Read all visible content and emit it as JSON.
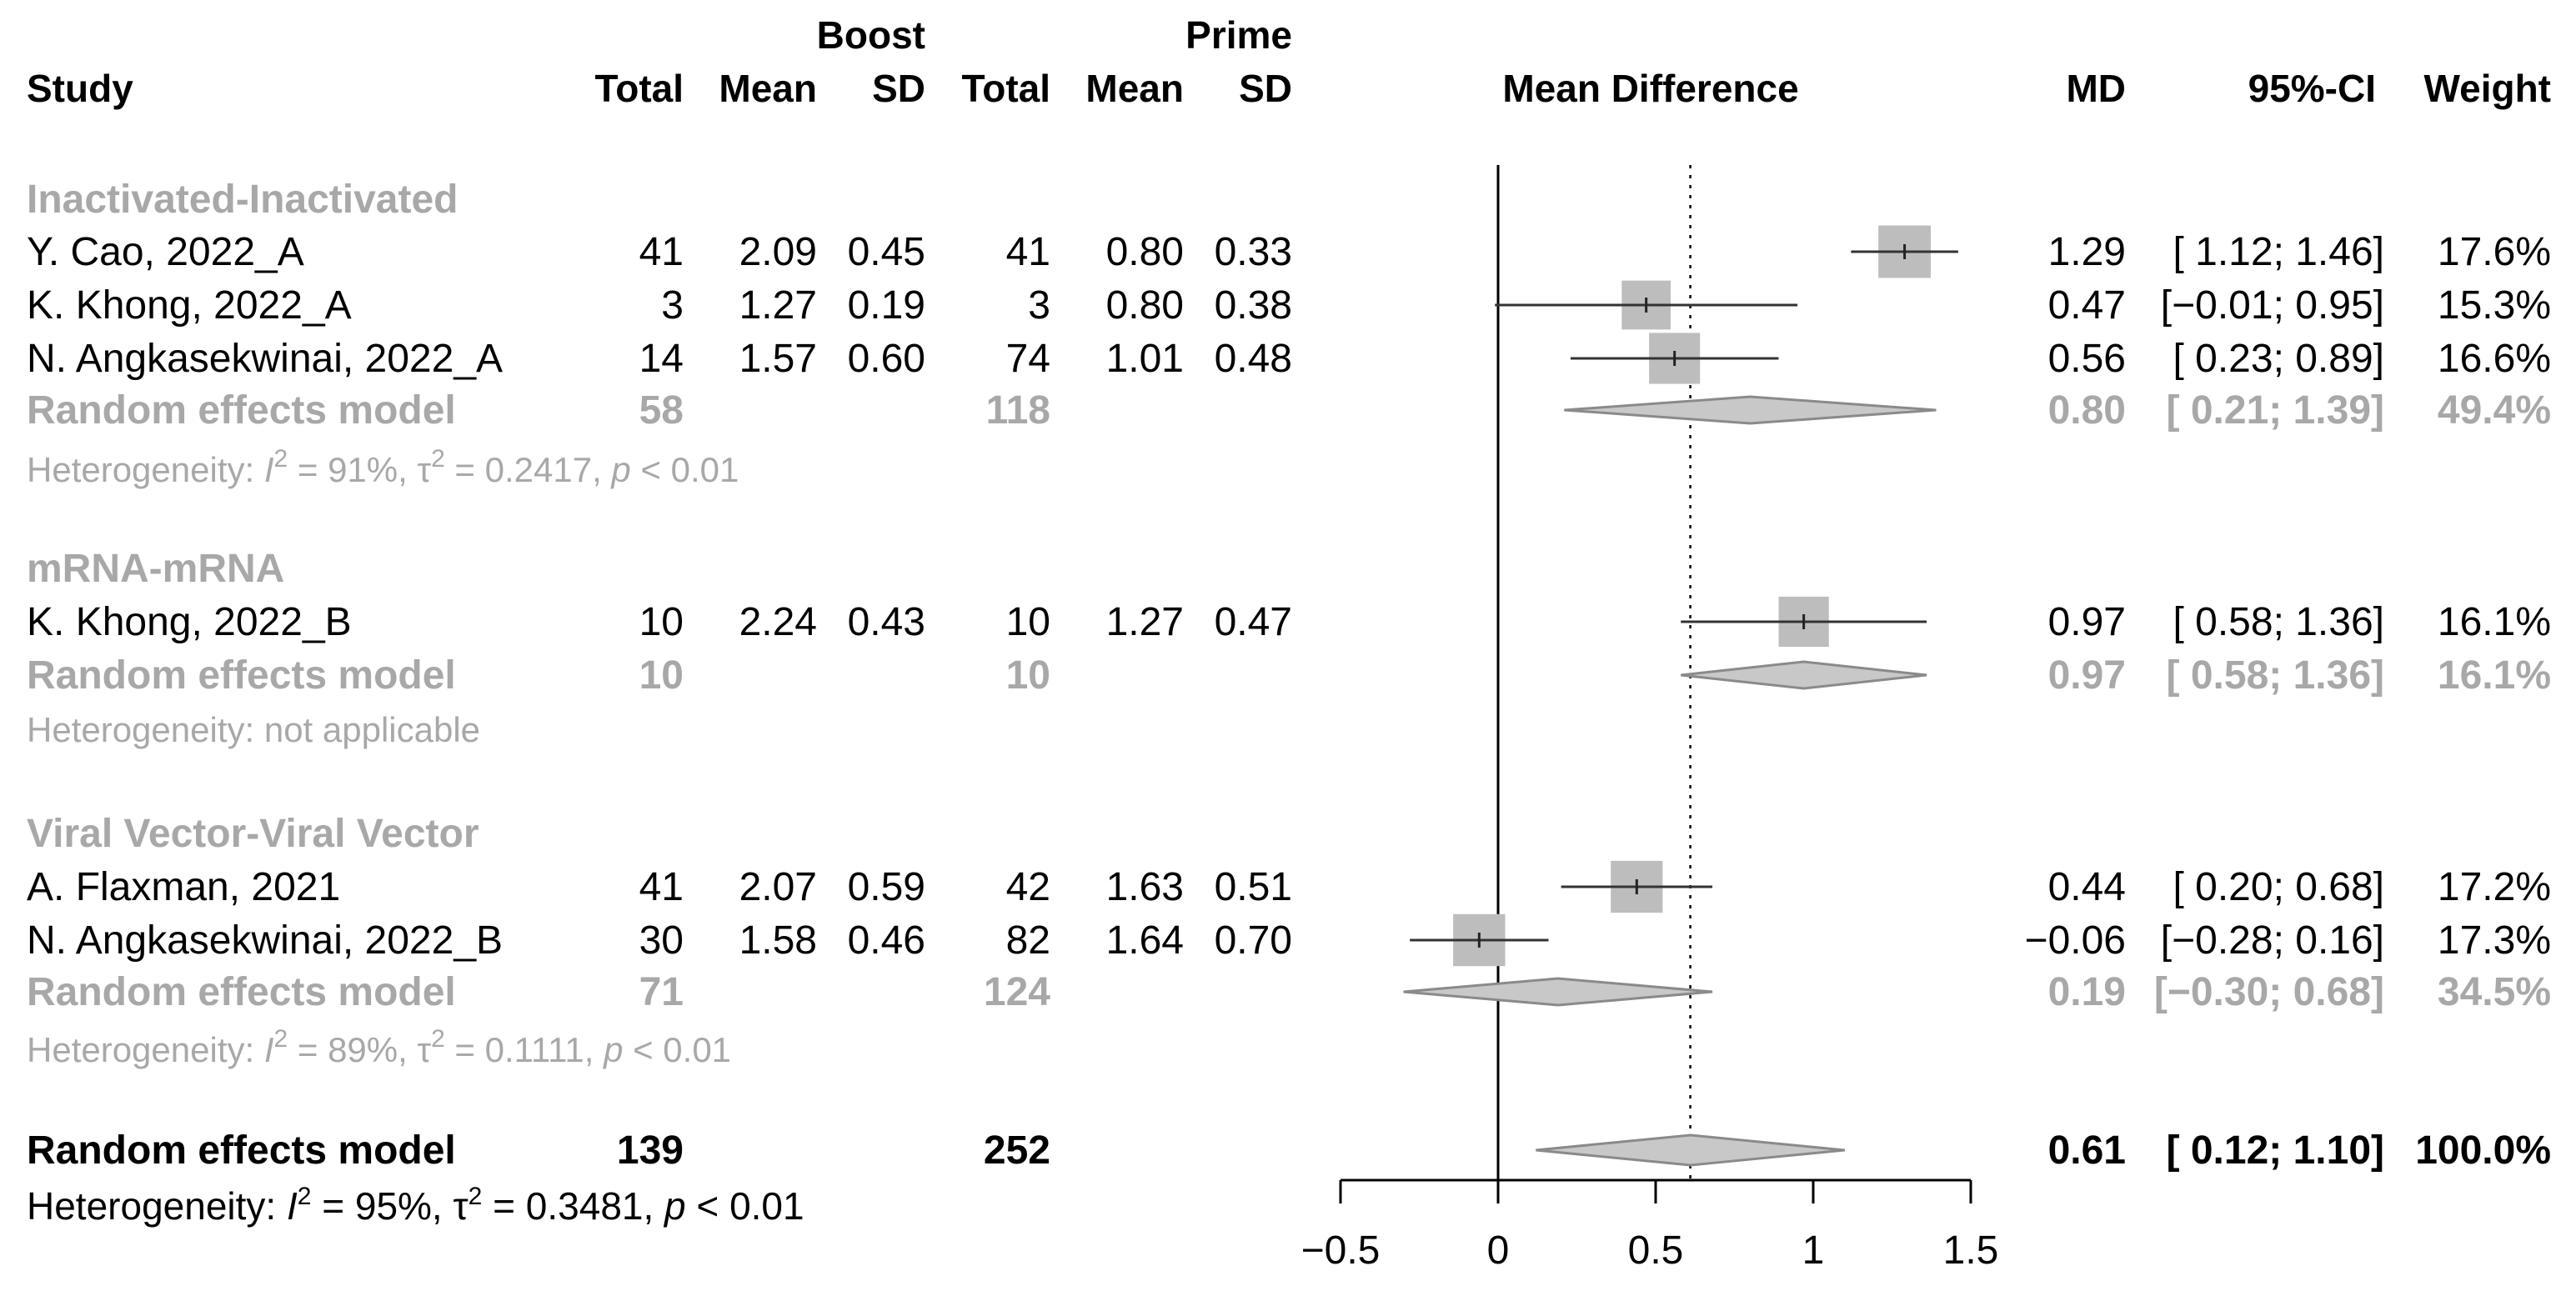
{
  "headers": {
    "study": "Study",
    "boost": "Boost",
    "prime": "Prime",
    "total": "Total",
    "mean": "Mean",
    "sd": "SD",
    "mean_difference": "Mean Difference",
    "md": "MD",
    "ci": "95%-CI",
    "weight": "Weight"
  },
  "groups": [
    {
      "name": "Inactivated-Inactivated",
      "studies": [
        {
          "study": "Y. Cao, 2022_A",
          "boost_total": "41",
          "boost_mean": "2.09",
          "boost_sd": "0.45",
          "prime_total": "41",
          "prime_mean": "0.80",
          "prime_sd": "0.33",
          "md": "1.29",
          "ci": "[ 1.12; 1.46]",
          "weight": "17.6%"
        },
        {
          "study": "K. Khong, 2022_A",
          "boost_total": "3",
          "boost_mean": "1.27",
          "boost_sd": "0.19",
          "prime_total": "3",
          "prime_mean": "0.80",
          "prime_sd": "0.38",
          "md": "0.47",
          "ci": "[−0.01; 0.95]",
          "weight": "15.3%"
        },
        {
          "study": "N. Angkasekwinai, 2022_A",
          "boost_total": "14",
          "boost_mean": "1.57",
          "boost_sd": "0.60",
          "prime_total": "74",
          "prime_mean": "1.01",
          "prime_sd": "0.48",
          "md": "0.56",
          "ci": "[ 0.23; 0.89]",
          "weight": "16.6%"
        }
      ],
      "model": {
        "label": "Random effects model",
        "boost_total": "58",
        "prime_total": "118",
        "md": "0.80",
        "ci": "[ 0.21; 1.39]",
        "weight": "49.4%"
      },
      "het": {
        "prefix": "Heterogeneity: ",
        "i": "I",
        "i2": "2",
        "i_val": " = 91%, τ",
        "t2": "2",
        "tau_val": " = 0.2417, ",
        "p": "p",
        "p_val": " < 0.01",
        "plain": ""
      }
    },
    {
      "name": "mRNA-mRNA",
      "studies": [
        {
          "study": "K. Khong, 2022_B",
          "boost_total": "10",
          "boost_mean": "2.24",
          "boost_sd": "0.43",
          "prime_total": "10",
          "prime_mean": "1.27",
          "prime_sd": "0.47",
          "md": "0.97",
          "ci": "[ 0.58; 1.36]",
          "weight": "16.1%"
        }
      ],
      "model": {
        "label": "Random effects model",
        "boost_total": "10",
        "prime_total": "10",
        "md": "0.97",
        "ci": "[ 0.58; 1.36]",
        "weight": "16.1%"
      },
      "het": {
        "plain": "Heterogeneity: not applicable"
      }
    },
    {
      "name": "Viral Vector-Viral Vector",
      "studies": [
        {
          "study": "A. Flaxman, 2021",
          "boost_total": "41",
          "boost_mean": "2.07",
          "boost_sd": "0.59",
          "prime_total": "42",
          "prime_mean": "1.63",
          "prime_sd": "0.51",
          "md": "0.44",
          "ci": "[ 0.20; 0.68]",
          "weight": "17.2%"
        },
        {
          "study": "N. Angkasekwinai, 2022_B",
          "boost_total": "30",
          "boost_mean": "1.58",
          "boost_sd": "0.46",
          "prime_total": "82",
          "prime_mean": "1.64",
          "prime_sd": "0.70",
          "md": "−0.06",
          "ci": "[−0.28; 0.16]",
          "weight": "17.3%"
        }
      ],
      "model": {
        "label": "Random effects model",
        "boost_total": "71",
        "prime_total": "124",
        "md": "0.19",
        "ci": "[−0.30; 0.68]",
        "weight": "34.5%"
      },
      "het": {
        "prefix": "Heterogeneity: ",
        "i": "I",
        "i2": "2",
        "i_val": " = 89%, τ",
        "t2": "2",
        "tau_val": " = 0.1111, ",
        "p": "p",
        "p_val": " < 0.01",
        "plain": ""
      }
    }
  ],
  "overall": {
    "label": "Random effects model",
    "boost_total": "139",
    "prime_total": "252",
    "md": "0.61",
    "ci": "[ 0.12; 1.10]",
    "weight": "100.0%",
    "het": {
      "prefix": "Heterogeneity: ",
      "i": "I",
      "i2": "2",
      "i_val": " = 95%, τ",
      "t2": "2",
      "tau_val": " = 0.3481, ",
      "p": "p",
      "p_val": " < 0.01"
    }
  },
  "chart_data": {
    "type": "forest",
    "xlabel": "Mean Difference",
    "xlim": [
      -0.5,
      1.5
    ],
    "xticks": [
      -0.5,
      0,
      0.5,
      1,
      1.5
    ],
    "xtick_labels": [
      "−0.5",
      "0",
      "0.5",
      "1",
      "1.5"
    ],
    "reference_line": 0,
    "overall_line": 0.61,
    "studies": [
      {
        "study": "Y. Cao, 2022_A",
        "group": "Inactivated-Inactivated",
        "md": 1.29,
        "lower": 1.12,
        "upper": 1.46,
        "weight": 17.6
      },
      {
        "study": "K. Khong, 2022_A",
        "group": "Inactivated-Inactivated",
        "md": 0.47,
        "lower": -0.01,
        "upper": 0.95,
        "weight": 15.3
      },
      {
        "study": "N. Angkasekwinai, 2022_A",
        "group": "Inactivated-Inactivated",
        "md": 0.56,
        "lower": 0.23,
        "upper": 0.89,
        "weight": 16.6
      },
      {
        "study": "K. Khong, 2022_B",
        "group": "mRNA-mRNA",
        "md": 0.97,
        "lower": 0.58,
        "upper": 1.36,
        "weight": 16.1
      },
      {
        "study": "A. Flaxman, 2021",
        "group": "Viral Vector-Viral Vector",
        "md": 0.44,
        "lower": 0.2,
        "upper": 0.68,
        "weight": 17.2
      },
      {
        "study": "N. Angkasekwinai, 2022_B",
        "group": "Viral Vector-Viral Vector",
        "md": -0.06,
        "lower": -0.28,
        "upper": 0.16,
        "weight": 17.3
      }
    ],
    "subgroup_models": [
      {
        "group": "Inactivated-Inactivated",
        "md": 0.8,
        "lower": 0.21,
        "upper": 1.39,
        "weight": 49.4
      },
      {
        "group": "mRNA-mRNA",
        "md": 0.97,
        "lower": 0.58,
        "upper": 1.36,
        "weight": 16.1
      },
      {
        "group": "Viral Vector-Viral Vector",
        "md": 0.19,
        "lower": -0.3,
        "upper": 0.68,
        "weight": 34.5
      }
    ],
    "overall_model": {
      "md": 0.61,
      "lower": 0.12,
      "upper": 1.1,
      "weight": 100.0
    },
    "colors": {
      "square": "#bdbdbd",
      "diamond_fill": "#c8c8c8",
      "diamond_stroke": "#8a8a8a",
      "line": "#000000",
      "grey_text": "#a8a8a8"
    }
  }
}
